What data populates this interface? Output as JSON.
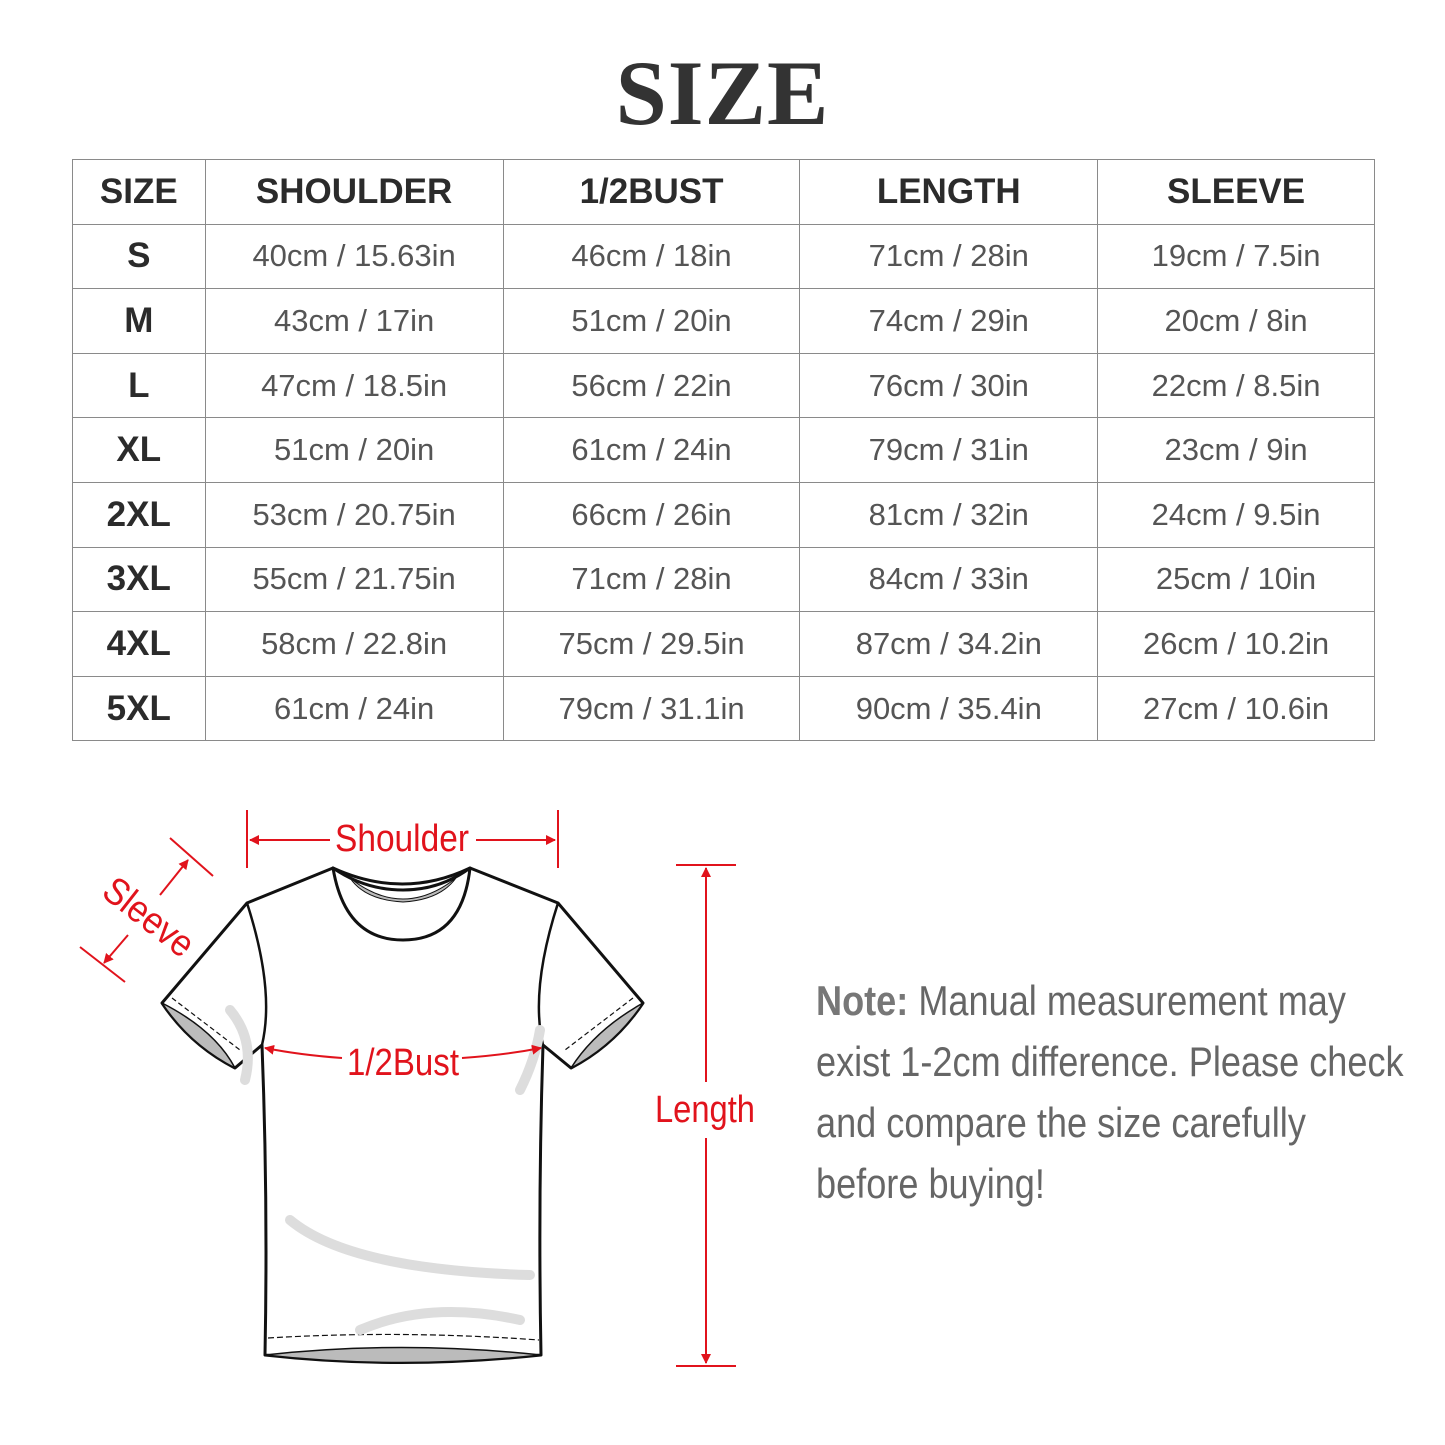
{
  "title": "SIZE",
  "table": {
    "headers": [
      "SIZE",
      "SHOULDER",
      "1/2BUST",
      "LENGTH",
      "SLEEVE"
    ],
    "rows": [
      [
        "S",
        "40cm / 15.63in",
        "46cm / 18in",
        "71cm / 28in",
        "19cm / 7.5in"
      ],
      [
        "M",
        "43cm / 17in",
        "51cm / 20in",
        "74cm / 29in",
        "20cm / 8in"
      ],
      [
        "L",
        "47cm / 18.5in",
        "56cm / 22in",
        "76cm / 30in",
        "22cm / 8.5in"
      ],
      [
        "XL",
        "51cm / 20in",
        "61cm / 24in",
        "79cm / 31in",
        "23cm / 9in"
      ],
      [
        "2XL",
        "53cm / 20.75in",
        "66cm / 26in",
        "81cm / 32in",
        "24cm / 9.5in"
      ],
      [
        "3XL",
        "55cm / 21.75in",
        "71cm / 28in",
        "84cm / 33in",
        "25cm / 10in"
      ],
      [
        "4XL",
        "58cm / 22.8in",
        "75cm / 29.5in",
        "87cm / 34.2in",
        "26cm / 10.2in"
      ],
      [
        "5XL",
        "61cm / 24in",
        "79cm / 31.1in",
        "90cm / 35.4in",
        "27cm / 10.6in"
      ]
    ]
  },
  "diagram": {
    "shoulder": "Shoulder",
    "sleeve": "Sleeve",
    "bust": "1/2Bust",
    "length": "Length",
    "accent_color": "#e1131c"
  },
  "note": {
    "label": "Note:",
    "text": " Manual measurement may exist 1-2cm difference. Please check and compare the size carefully before buying!"
  }
}
